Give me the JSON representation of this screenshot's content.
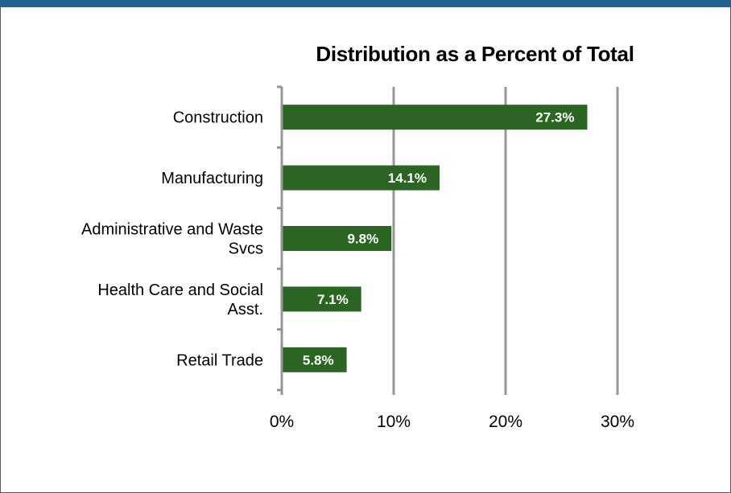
{
  "chart_data": {
    "type": "bar",
    "orientation": "horizontal",
    "title": "Distribution as a Percent of Total",
    "categories": [
      [
        "Construction"
      ],
      [
        "Manufacturing"
      ],
      [
        "Administrative and Waste",
        "Svcs"
      ],
      [
        "Health Care and Social",
        "Asst."
      ],
      [
        "Retail Trade"
      ]
    ],
    "values": [
      27.3,
      14.1,
      9.8,
      7.1,
      5.8
    ],
    "data_labels": [
      "27.3%",
      "14.1%",
      "9.8%",
      "7.1%",
      "5.8%"
    ],
    "x_ticks": [
      0,
      10,
      20,
      30
    ],
    "x_tick_labels": [
      "0%",
      "10%",
      "20%",
      "30%"
    ],
    "xlim": [
      0,
      30
    ],
    "grid": "vertical",
    "colors": {
      "bar": "#2a6621",
      "gridline": "#969696",
      "axis": "#969696",
      "top_bar": "#23618e"
    }
  }
}
